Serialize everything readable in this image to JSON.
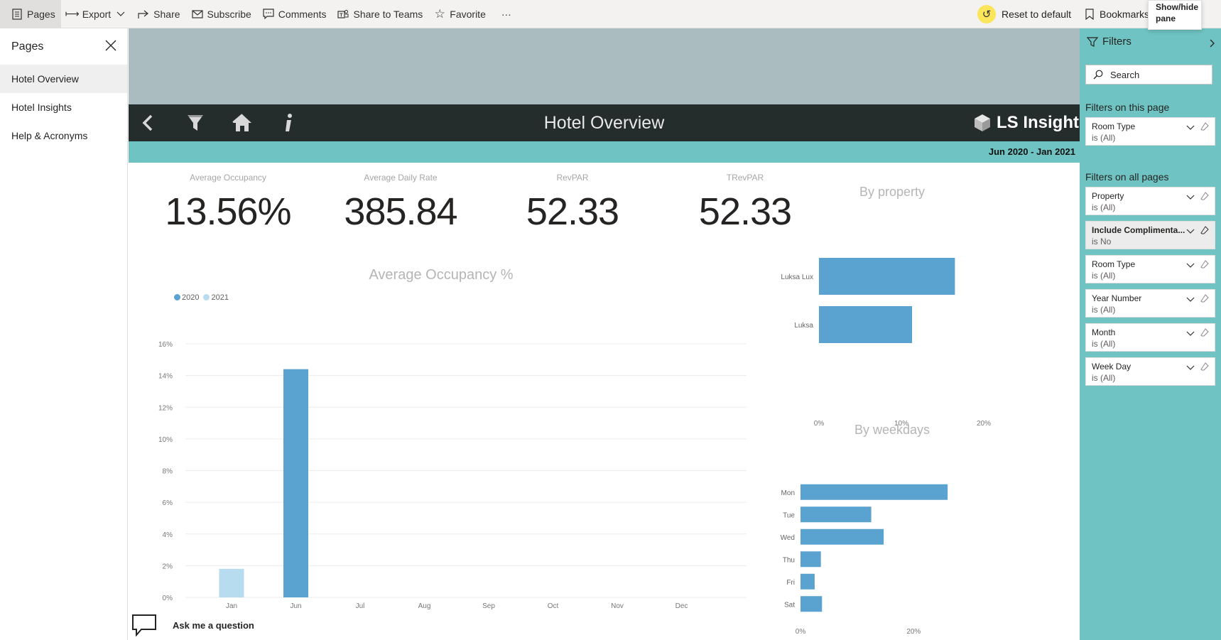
{
  "toolbar": {
    "pages": "Pages",
    "export": "Export",
    "share": "Share",
    "subscribe": "Subscribe",
    "comments": "Comments",
    "share_teams": "Share to Teams",
    "favorite": "Favorite",
    "more": "···",
    "reset": "Reset to default",
    "bookmarks": "Bookmarks",
    "tooltip": "Show/hide pane"
  },
  "pages_pane": {
    "title": "Pages",
    "items": [
      {
        "label": "Hotel Overview",
        "selected": true
      },
      {
        "label": "Hotel Insights",
        "selected": false
      },
      {
        "label": "Help & Acronyms",
        "selected": false
      }
    ]
  },
  "report": {
    "title": "Hotel Overview",
    "logo_text": "LS Insight",
    "date_range": "Jun 2020 - Jan 2021",
    "kpis": [
      {
        "label": "Average Occupancy",
        "value": "13.56%"
      },
      {
        "label": "Average Daily Rate",
        "value": "385.84"
      },
      {
        "label": "RevPAR",
        "value": "52.33"
      },
      {
        "label": "TRevPAR",
        "value": "52.33"
      }
    ],
    "ask_question": "Ask me a question"
  },
  "colors": {
    "accent_teal": "#6fc4c3",
    "dark_bar": "#252c2c",
    "bar_2020": "#5aa2cf",
    "bar_2021": "#b7dcef"
  },
  "chart_data": [
    {
      "type": "bar",
      "title": "Average Occupancy %",
      "categories": [
        "Jan",
        "Jun",
        "Jul",
        "Aug",
        "Sep",
        "Oct",
        "Nov",
        "Dec"
      ],
      "series": [
        {
          "name": "2020",
          "values": [
            null,
            14.4,
            null,
            null,
            null,
            null,
            null,
            null
          ]
        },
        {
          "name": "2021",
          "values": [
            1.8,
            null,
            null,
            null,
            null,
            null,
            null,
            null
          ]
        }
      ],
      "yticks": [
        "0%",
        "2%",
        "4%",
        "6%",
        "8%",
        "10%",
        "12%",
        "14%",
        "16%"
      ],
      "ylim": [
        0,
        16
      ],
      "grid": true,
      "legend": "top-left"
    },
    {
      "type": "bar",
      "orientation": "horizontal",
      "title": "By property",
      "categories": [
        "Luksa Lux",
        "Luksa"
      ],
      "values": [
        16.5,
        11.3
      ],
      "xticks": [
        "0%",
        "10%",
        "20%"
      ],
      "xlim": [
        0,
        20
      ]
    },
    {
      "type": "bar",
      "orientation": "horizontal",
      "title": "By weekdays",
      "categories": [
        "Mon",
        "Tue",
        "Wed",
        "Thu",
        "Fri",
        "Sat"
      ],
      "values": [
        26,
        12.5,
        14.7,
        3.6,
        2.5,
        3.8
      ],
      "xticks": [
        "0%",
        "20%"
      ],
      "xlim": [
        0,
        30
      ]
    }
  ],
  "filters": {
    "title": "Filters",
    "search_placeholder": "Search",
    "on_this_page_label": "Filters on this page",
    "on_all_pages_label": "Filters on all pages",
    "this_page": [
      {
        "name": "Room Type",
        "value": "is (All)"
      }
    ],
    "all_pages": [
      {
        "name": "Property",
        "value": "is (All)"
      },
      {
        "name": "Include Complimenta...",
        "value": "is No"
      },
      {
        "name": "Room Type",
        "value": "is (All)"
      },
      {
        "name": "Year Number",
        "value": "is (All)"
      },
      {
        "name": "Month",
        "value": "is (All)"
      },
      {
        "name": "Week Day",
        "value": "is (All)"
      }
    ]
  }
}
